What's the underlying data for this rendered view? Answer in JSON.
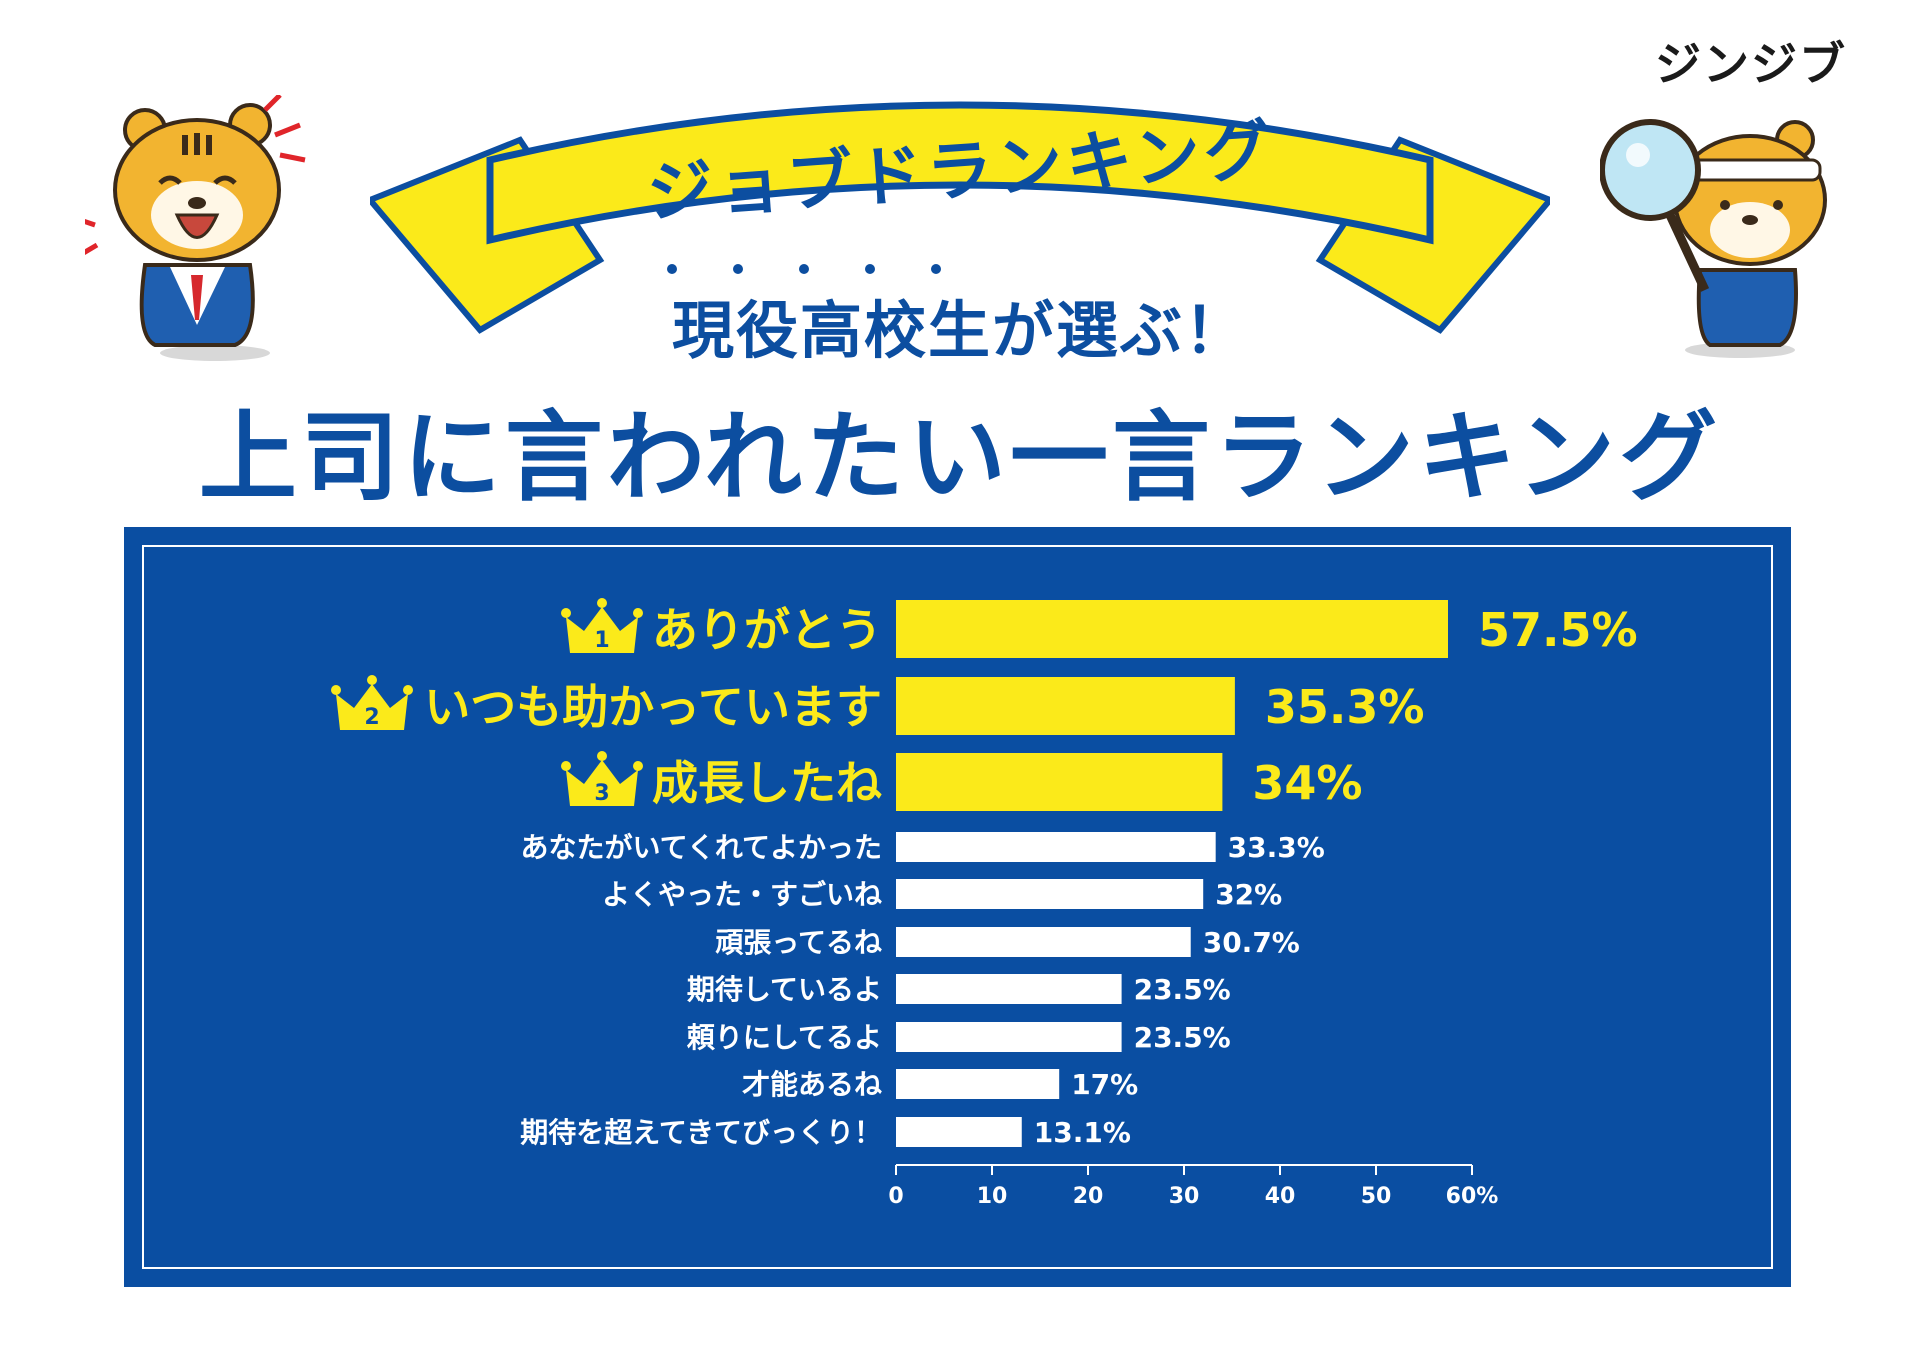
{
  "brand": {
    "logo": "ジンジブ"
  },
  "banner": {
    "text": "ジョブドランキング"
  },
  "header": {
    "subtitle": "現役高校生が選ぶ！",
    "title": "上司に言われたい一言ランキング"
  },
  "colors": {
    "navy": "#0a4ea2",
    "yellow": "#fbea1a",
    "white": "#ffffff"
  },
  "icons": {
    "rank": "crown-icon",
    "left_mascot": "tiger-mascot-icon",
    "right_mascot": "tiger-detective-icon"
  },
  "chart_data": {
    "type": "bar",
    "orientation": "horizontal",
    "categories": [
      "ありがとう",
      "いつも助かっています",
      "成長したね",
      "あなたがいてくれてよかった",
      "よくやった・すごいね",
      "頑張ってるね",
      "期待しているよ",
      "頼りにしてるよ",
      "才能あるね",
      "期待を超えてきてびっくり！"
    ],
    "values": [
      57.5,
      35.3,
      34,
      33.3,
      32,
      30.7,
      23.5,
      23.5,
      17,
      13.1
    ],
    "value_labels": [
      "57.5%",
      "35.3%",
      "34%",
      "33.3%",
      "32%",
      "30.7%",
      "23.5%",
      "23.5%",
      "17%",
      "13.1%"
    ],
    "top_ranks": [
      "1",
      "2",
      "3"
    ],
    "xlim": [
      0,
      60
    ],
    "xticks": [
      "0",
      "10",
      "20",
      "30",
      "40",
      "50",
      "60%"
    ],
    "xlabel": "",
    "ylabel": "",
    "grid": false,
    "legend": "none"
  }
}
